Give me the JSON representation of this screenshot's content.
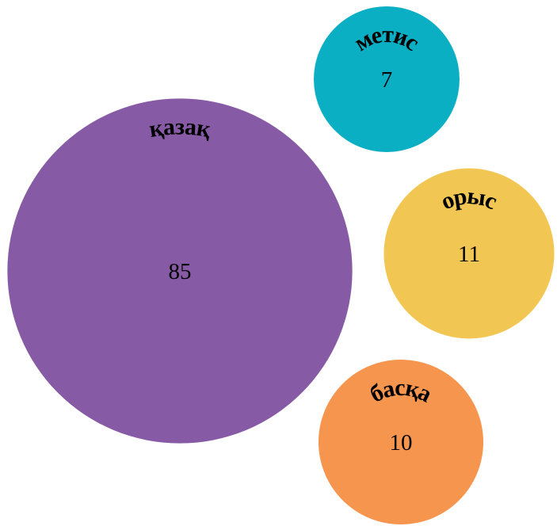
{
  "chart_data": {
    "type": "bubble",
    "categories": [
      "қазақ",
      "метис",
      "орыс",
      "басқа"
    ],
    "values": [
      85,
      7,
      11,
      10
    ],
    "colors": [
      "#875aa5",
      "#0bafc4",
      "#f2c653",
      "#f6954e"
    ]
  }
}
